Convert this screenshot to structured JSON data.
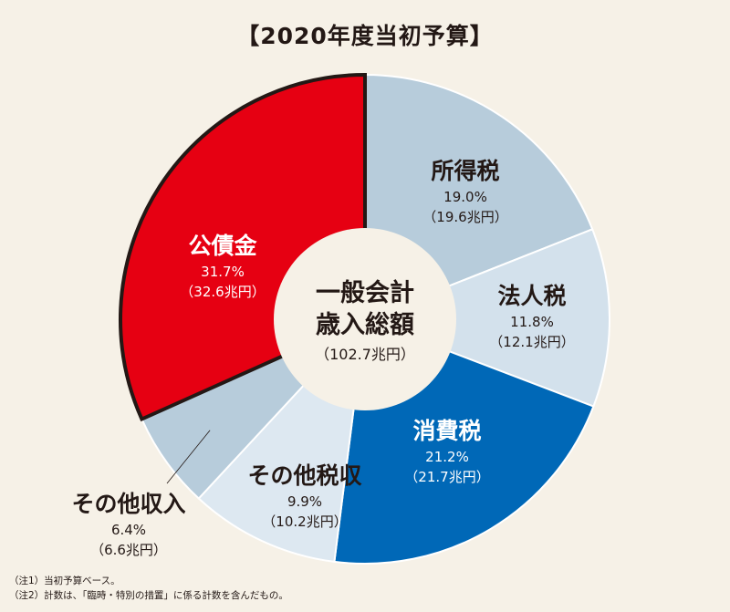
{
  "title": "【2020年度当初予算】",
  "center": {
    "line1": "一般会計",
    "line2": "歳入総額",
    "total": "（102.7兆円）"
  },
  "colors": {
    "background": "#f6f1e7",
    "border": "#231815"
  },
  "chart_data": {
    "type": "pie",
    "title": "【2020年度当初予算】",
    "unit": "兆円",
    "total": 102.7,
    "slices": [
      {
        "name": "所得税",
        "percent": 19.0,
        "value": 19.6,
        "pct_label": "19.0%",
        "amt_label": "（19.6兆円）",
        "color": "#b7ccdb",
        "text_color": "#231815"
      },
      {
        "name": "法人税",
        "percent": 11.8,
        "value": 12.1,
        "pct_label": "11.8%",
        "amt_label": "（12.1兆円）",
        "color": "#d3e1ec",
        "text_color": "#231815"
      },
      {
        "name": "消費税",
        "percent": 21.2,
        "value": 21.7,
        "pct_label": "21.2%",
        "amt_label": "（21.7兆円）",
        "color": "#0068b7",
        "text_color": "#ffffff"
      },
      {
        "name": "その他税収",
        "percent": 9.9,
        "value": 10.2,
        "pct_label": "9.9%",
        "amt_label": "（10.2兆円）",
        "color": "#dde8f1",
        "text_color": "#231815"
      },
      {
        "name": "その他収入",
        "percent": 6.4,
        "value": 6.6,
        "pct_label": "6.4%",
        "amt_label": "（6.6兆円）",
        "color": "#b7ccdb",
        "text_color": "#231815"
      },
      {
        "name": "公債金",
        "percent": 31.7,
        "value": 32.6,
        "pct_label": "31.7%",
        "amt_label": "（32.6兆円）",
        "color": "#e60012",
        "text_color": "#ffffff",
        "highlighted": true
      }
    ]
  },
  "notes": [
    "（注1）当初予算ベース。",
    "（注2）計数は、「臨時・特別の措置」に係る計数を含んだもの。"
  ]
}
